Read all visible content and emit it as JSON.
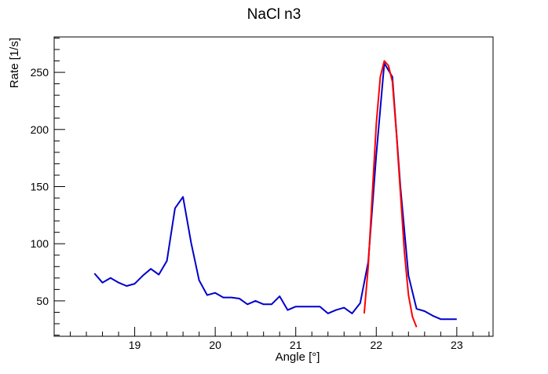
{
  "chart_data": {
    "type": "line",
    "title": "NaCl n3",
    "xlabel": "Angle [°]",
    "ylabel": "Rate [1/s]",
    "xlim": [
      18.0,
      23.45
    ],
    "ylim": [
      19.0,
      281.0
    ],
    "x_ticks": [
      19,
      20,
      21,
      22,
      23
    ],
    "y_ticks": [
      50,
      100,
      150,
      200,
      250
    ],
    "grid": false,
    "legend": "none",
    "series": [
      {
        "color": "#0000cc",
        "x": [
          18.5,
          18.6,
          18.7,
          18.8,
          18.9,
          19.0,
          19.1,
          19.2,
          19.3,
          19.4,
          19.5,
          19.6,
          19.7,
          19.8,
          19.9,
          20.0,
          20.1,
          20.2,
          20.3,
          20.4,
          20.5,
          20.6,
          20.7,
          20.8,
          20.9,
          21.0,
          21.1,
          21.2,
          21.3,
          21.4,
          21.5,
          21.6,
          21.7,
          21.8,
          21.9,
          22.0,
          22.1,
          22.2,
          22.3,
          22.4,
          22.5,
          22.6,
          22.7,
          22.8,
          22.9,
          23.0
        ],
        "y": [
          74,
          66,
          70,
          66,
          63,
          65,
          72,
          78,
          73,
          85,
          131,
          141,
          101,
          68,
          55,
          57,
          53,
          53,
          52,
          47,
          50,
          47,
          47,
          54,
          42,
          45,
          45,
          45,
          45,
          39,
          42,
          44,
          39,
          48,
          84,
          178,
          258,
          246,
          150,
          72,
          43,
          41,
          37,
          34,
          34,
          34
        ]
      },
      {
        "color": "#ff0000",
        "x": [
          21.85,
          21.9,
          21.95,
          22.0,
          22.05,
          22.1,
          22.15,
          22.2,
          22.25,
          22.3,
          22.35,
          22.4,
          22.45,
          22.5
        ],
        "y": [
          39,
          80,
          142,
          205,
          246,
          260,
          256,
          242,
          197,
          145,
          92,
          55,
          36,
          27
        ]
      }
    ]
  }
}
